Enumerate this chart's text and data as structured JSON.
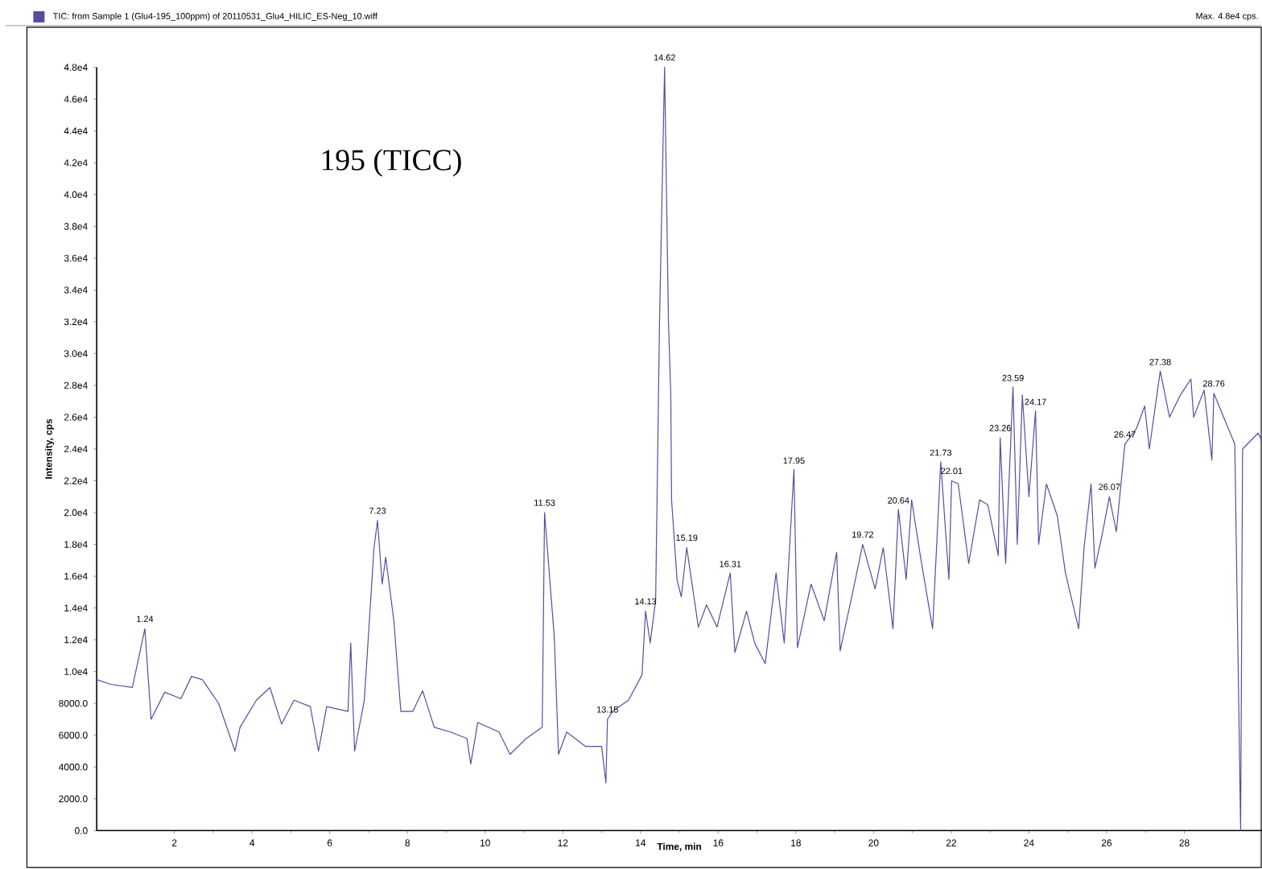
{
  "chart_data": {
    "type": "line",
    "title": "195 (TICC)",
    "xlabel": "Time, min",
    "ylabel": "Intensity, cps",
    "xlim": [
      0,
      30
    ],
    "xticks": [
      2,
      4,
      6,
      8,
      10,
      12,
      14,
      16,
      18,
      20,
      22,
      24,
      26,
      28
    ],
    "ylim": [
      0,
      48000
    ],
    "yticks": [
      {
        "value": 0,
        "label": "0.0"
      },
      {
        "value": 2000,
        "label": "2000.0"
      },
      {
        "value": 4000,
        "label": "4000.0"
      },
      {
        "value": 6000,
        "label": "6000.0"
      },
      {
        "value": 8000,
        "label": "8000.0"
      },
      {
        "value": 10000,
        "label": "1.0e4"
      },
      {
        "value": 12000,
        "label": "1.2e4"
      },
      {
        "value": 14000,
        "label": "1.4e4"
      },
      {
        "value": 16000,
        "label": "1.6e4"
      },
      {
        "value": 18000,
        "label": "1.8e4"
      },
      {
        "value": 20000,
        "label": "2.0e4"
      },
      {
        "value": 22000,
        "label": "2.2e4"
      },
      {
        "value": 24000,
        "label": "2.4e4"
      },
      {
        "value": 26000,
        "label": "2.6e4"
      },
      {
        "value": 28000,
        "label": "2.8e4"
      },
      {
        "value": 30000,
        "label": "3.0e4"
      },
      {
        "value": 32000,
        "label": "3.2e4"
      },
      {
        "value": 34000,
        "label": "3.4e4"
      },
      {
        "value": 36000,
        "label": "3.6e4"
      },
      {
        "value": 38000,
        "label": "3.8e4"
      },
      {
        "value": 40000,
        "label": "4.0e4"
      },
      {
        "value": 42000,
        "label": "4.2e4"
      },
      {
        "value": 44000,
        "label": "4.4e4"
      },
      {
        "value": 46000,
        "label": "4.6e4"
      },
      {
        "value": 48000,
        "label": "4.8e4"
      }
    ],
    "marker": "none",
    "line_style": "solid",
    "series": [
      {
        "color": "#5b4aa0",
        "x": [
          0,
          0.36,
          0.92,
          1.24,
          1.4,
          1.75,
          2.17,
          2.44,
          2.72,
          3.14,
          3.56,
          3.69,
          4.11,
          4.46,
          4.76,
          5.08,
          5.5,
          5.71,
          5.92,
          6.47,
          6.54,
          6.64,
          6.89,
          7.14,
          7.23,
          7.35,
          7.44,
          7.65,
          7.83,
          8.14,
          8.39,
          8.69,
          9.11,
          9.53,
          9.63,
          9.81,
          10.36,
          10.64,
          11.06,
          11.47,
          11.53,
          11.78,
          11.89,
          12.1,
          12.58,
          13.0,
          13.11,
          13.15,
          13.28,
          13.69,
          14.04,
          14.13,
          14.25,
          14.39,
          14.49,
          14.62,
          14.72,
          14.78,
          14.8,
          14.94,
          15.05,
          15.19,
          15.49,
          15.7,
          15.97,
          16.31,
          16.43,
          16.73,
          16.94,
          17.21,
          17.49,
          17.7,
          17.95,
          18.04,
          18.39,
          18.73,
          19.05,
          19.14,
          19.42,
          19.72,
          20.04,
          20.25,
          20.5,
          20.64,
          20.84,
          20.98,
          21.21,
          21.52,
          21.73,
          21.94,
          22.01,
          22.18,
          22.45,
          22.73,
          22.94,
          23.21,
          23.26,
          23.4,
          23.59,
          23.7,
          23.83,
          24.0,
          24.17,
          24.25,
          24.45,
          24.73,
          24.94,
          25.28,
          25.42,
          25.6,
          25.7,
          25.9,
          26.07,
          26.25,
          26.47,
          26.77,
          26.98,
          27.1,
          27.38,
          27.62,
          27.9,
          28.17,
          28.24,
          28.51,
          28.71,
          28.76,
          29.3,
          29.45,
          29.5,
          29.9,
          30.0
        ],
        "values": [
          9500,
          9200,
          9000,
          12700,
          7000,
          8700,
          8300,
          9700,
          9500,
          8000,
          5000,
          6500,
          8200,
          9000,
          6700,
          8200,
          7800,
          5000,
          7800,
          7500,
          11800,
          5000,
          8200,
          17800,
          19500,
          15500,
          17200,
          13200,
          7500,
          7500,
          8800,
          6500,
          6200,
          5800,
          4200,
          6800,
          6200,
          4800,
          5800,
          6500,
          20000,
          12200,
          4800,
          6200,
          5300,
          5300,
          3000,
          7000,
          7500,
          8200,
          9800,
          13800,
          11800,
          14500,
          32000,
          48000,
          32000,
          27400,
          20800,
          15800,
          14700,
          17800,
          12800,
          14200,
          12800,
          16200,
          11200,
          13800,
          11800,
          10500,
          16200,
          11800,
          22700,
          11500,
          15500,
          13200,
          17500,
          11300,
          14500,
          18000,
          15200,
          17800,
          12700,
          20200,
          15800,
          20800,
          17200,
          12700,
          23200,
          15800,
          22000,
          21800,
          16800,
          20800,
          20500,
          17300,
          24700,
          16800,
          27900,
          18000,
          27400,
          21000,
          26400,
          18000,
          21800,
          19800,
          16200,
          12700,
          17800,
          21800,
          16500,
          18800,
          21000,
          18800,
          24300,
          25300,
          26700,
          24000,
          28900,
          26000,
          27400,
          28400,
          26000,
          27700,
          23300,
          27500,
          24300,
          0,
          24000,
          25000,
          24500
        ]
      }
    ],
    "annotations": [
      "TIC: from Sample 1 (Glu4-195_100ppm) of 20110531_Glu4_HILIC_ES-Neg_10.wiff",
      "Max. 4.8e4 cps.",
      {
        "text": "1.24",
        "x": 1.24,
        "y": 12700
      },
      {
        "text": "7.23",
        "x": 7.23,
        "y": 19500
      },
      {
        "text": "11.53",
        "x": 11.53,
        "y": 20000
      },
      {
        "text": "13.15",
        "x": 13.15,
        "y": 7000
      },
      {
        "text": "14.13",
        "x": 14.13,
        "y": 13800
      },
      {
        "text": "14.62",
        "x": 14.62,
        "y": 48000
      },
      {
        "text": "15.19",
        "x": 15.19,
        "y": 17800
      },
      {
        "text": "16.31",
        "x": 16.31,
        "y": 16150
      },
      {
        "text": "17.95",
        "x": 17.95,
        "y": 22650
      },
      {
        "text": "19.72",
        "x": 19.72,
        "y": 18000
      },
      {
        "text": "20.64",
        "x": 20.64,
        "y": 20150
      },
      {
        "text": "21.73",
        "x": 21.73,
        "y": 23150
      },
      {
        "text": "22.01",
        "x": 22.01,
        "y": 22000
      },
      {
        "text": "23.26",
        "x": 23.26,
        "y": 24700
      },
      {
        "text": "23.59",
        "x": 23.59,
        "y": 27850
      },
      {
        "text": "24.17",
        "x": 24.17,
        "y": 26350
      },
      {
        "text": "26.07",
        "x": 26.07,
        "y": 21000
      },
      {
        "text": "26.47",
        "x": 26.47,
        "y": 24300
      },
      {
        "text": "27.38",
        "x": 27.38,
        "y": 28850
      },
      {
        "text": "28.76",
        "x": 28.76,
        "y": 27500
      }
    ]
  }
}
